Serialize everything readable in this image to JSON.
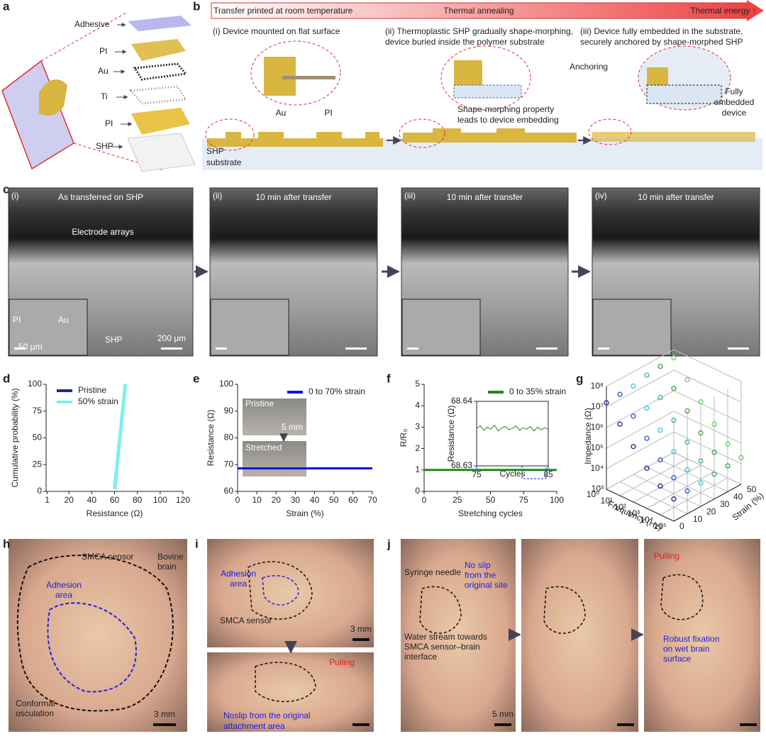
{
  "panels": {
    "a": {
      "label": "a",
      "layers": [
        "Adhesive",
        "PI",
        "Au",
        "Ti",
        "PI",
        "SHP"
      ]
    },
    "b": {
      "label": "b",
      "process": [
        "Transfer printed at room temperature",
        "Thermal annealing",
        "Thermal energy ↑"
      ],
      "steps": [
        [
          "(i) Device mounted on flat surface"
        ],
        [
          "(ii) Thermoplastic SHP gradually shape-morphing,",
          "device buried inside the polymer substrate"
        ],
        [
          "(iii) Device fully embedded in the substrate,",
          "securely anchored by shape-morphed SHP"
        ]
      ],
      "labels": {
        "au": "Au",
        "pi": "PI",
        "substrate": [
          "SHP",
          "substrate"
        ],
        "morphing": [
          "Shape-morphing property",
          "leads to device embedding"
        ],
        "anchoring": "Anchoring",
        "embedded": [
          "Fully",
          "embedded",
          "device"
        ]
      }
    },
    "c": {
      "label": "c",
      "images": [
        {
          "tag": "(i)",
          "title": "As transferred on SHP",
          "scale": "200 μm",
          "inset_scale": "50 μm"
        },
        {
          "tag": "(ii)",
          "title": "10 min after transfer"
        },
        {
          "tag": "(iii)",
          "title": "10 min after transfer"
        },
        {
          "tag": "(iv)",
          "title": "10 min after transfer"
        }
      ],
      "annotations": {
        "arrays": "Electrode arrays",
        "pi": "PI",
        "au": "Au",
        "shp": "SHP"
      }
    },
    "d": {
      "label": "d",
      "xlabel": "Resistance (Ω)",
      "ylabel": "Cumulative probability (%)",
      "xlim": [
        0,
        120
      ],
      "xticks": [
        1,
        20,
        40,
        60,
        80,
        100,
        120
      ],
      "ylim": [
        0,
        100
      ],
      "yticks": [
        0,
        25,
        50,
        75,
        100
      ],
      "series": [
        {
          "name": "Pristine",
          "color": "#1a2aa0",
          "x": [
            61,
            70
          ],
          "values": [
            2,
            100
          ]
        },
        {
          "name": "50% strain",
          "color": "#7ff0ec",
          "x": [
            60,
            69.5
          ],
          "values": [
            2,
            100
          ]
        }
      ]
    },
    "e": {
      "label": "e",
      "xlabel": "Strain (%)",
      "ylabel": "Resistance (Ω)",
      "xlim": [
        0,
        70
      ],
      "xticks": [
        0,
        10,
        20,
        30,
        40,
        50,
        60,
        70
      ],
      "ylim": [
        60,
        100
      ],
      "yticks": [
        60,
        70,
        80,
        90,
        100
      ],
      "series": [
        {
          "name": "0 to 70% strain",
          "color": "#1414d8",
          "x": [
            0,
            70
          ],
          "values": [
            68.6,
            68.6
          ]
        }
      ],
      "inset": {
        "pristine": "Pristine",
        "scale": "5 mm",
        "stretched": "Stretched"
      }
    },
    "f": {
      "label": "f",
      "xlabel": "Stretching cycles",
      "ylabel": "R/R₀",
      "xlim": [
        0,
        100
      ],
      "xticks": [
        0,
        25,
        50,
        75,
        100
      ],
      "ylim": [
        0,
        5
      ],
      "yticks": [
        0,
        1,
        2,
        3,
        4,
        5
      ],
      "series": [
        {
          "name": "0 to 35% strain",
          "color": "#1a8a1a",
          "x": [
            0,
            100
          ],
          "values": [
            1,
            1
          ]
        }
      ],
      "inset": {
        "xlabel": "Cycles",
        "ylabel": "Resistance (Ω)",
        "xlim": [
          75,
          85
        ],
        "xticks": [
          75,
          85
        ],
        "ylim": [
          68.63,
          68.64
        ],
        "yticks": [
          68.63,
          68.64
        ],
        "series": [
          {
            "color": "#1a8a1a",
            "x": [
              75,
              75.5,
              76,
              76.5,
              77,
              77.5,
              78,
              78.5,
              79,
              79.5,
              80,
              80.5,
              81,
              81.5,
              82,
              82.5,
              83,
              83.5,
              84,
              84.5,
              85
            ],
            "values": [
              68.6358,
              68.6362,
              68.6355,
              68.636,
              68.6357,
              68.6363,
              68.6354,
              68.6359,
              68.6361,
              68.6356,
              68.6358,
              68.6362,
              68.6355,
              68.6359,
              68.6357,
              68.6361,
              68.6354,
              68.636,
              68.6356,
              68.6359,
              68.6357
            ]
          }
        ]
      }
    },
    "g": {
      "label": "g",
      "xlabel": "Frequency (Hz)",
      "ylabel": "Impedance (Ω)",
      "zlabel": "Strain (%)",
      "log": true,
      "xlim": [
        1,
        100000
      ],
      "ylim": [
        1000,
        100000000
      ],
      "zlim": [
        0,
        50
      ],
      "xticks": [
        {
          "value": 1,
          "label": "10⁰"
        },
        {
          "value": 10,
          "label": "10¹"
        },
        {
          "value": 100,
          "label": "10²"
        },
        {
          "value": 1000,
          "label": "10³"
        },
        {
          "value": 10000,
          "label": "10⁴"
        },
        {
          "value": 100000,
          "label": "10⁵"
        }
      ],
      "yticks": [
        {
          "value": 1000,
          "label": "10³"
        },
        {
          "value": 10000,
          "label": "10⁴"
        },
        {
          "value": 100000,
          "label": "10⁵"
        },
        {
          "value": 1000000,
          "label": "10⁶"
        },
        {
          "value": 10000000,
          "label": "10⁷"
        },
        {
          "value": 100000000,
          "label": "10⁸"
        }
      ],
      "zticks": [
        0,
        10,
        20,
        30,
        40,
        50
      ],
      "x": [
        1,
        10,
        100,
        1000,
        10000,
        100000
      ],
      "series": [
        {
          "strain": 0,
          "color": "#202090",
          "values": [
            16000000,
            3000000,
            500000,
            90000,
            25000,
            12000
          ]
        },
        {
          "strain": 10,
          "color": "#3050d0",
          "values": [
            18000000,
            3200000,
            550000,
            100000,
            28000,
            13000
          ]
        },
        {
          "strain": 20,
          "color": "#30c8e0",
          "values": [
            20000000,
            3500000,
            600000,
            110000,
            30000,
            14000
          ]
        },
        {
          "strain": 30,
          "color": "#40b0a0",
          "values": [
            30000000,
            5000000,
            800000,
            140000,
            35000,
            16000
          ]
        },
        {
          "strain": 40,
          "color": "#40a040",
          "values": [
            35000000,
            6000000,
            1000000,
            170000,
            40000,
            18000
          ]
        },
        {
          "strain": 50,
          "color": "#60d060",
          "values": [
            40000000,
            7000000,
            1200000,
            200000,
            45000,
            20000
          ]
        }
      ]
    },
    "h": {
      "label": "h",
      "labels": {
        "sensor": "SMCA sensor",
        "brain": [
          "Bovine",
          "brain"
        ],
        "adhesion": [
          "Adhesion",
          "area"
        ],
        "osculation": [
          "Conformal",
          "osculation"
        ],
        "scale": "3 mm"
      }
    },
    "i": {
      "label": "i",
      "labels": {
        "adhesion": [
          "Adhesion",
          "area"
        ],
        "sensor": "SMCA sensor",
        "scale": "3 mm",
        "pulling": "Pulling",
        "noslip": [
          "Noslip from the original",
          "attachment area"
        ]
      }
    },
    "j": {
      "label": "j",
      "labels": {
        "needle": "Syringe needle",
        "noslip": [
          "No slip",
          "from the",
          "original site"
        ],
        "water": [
          "Water stream towards",
          "SMCA sensor–brain",
          "interface"
        ],
        "scale": "5 mm",
        "pulling": "Pulling",
        "fixation": [
          "Robust fixation",
          "on wet brain",
          "surface"
        ]
      }
    }
  }
}
